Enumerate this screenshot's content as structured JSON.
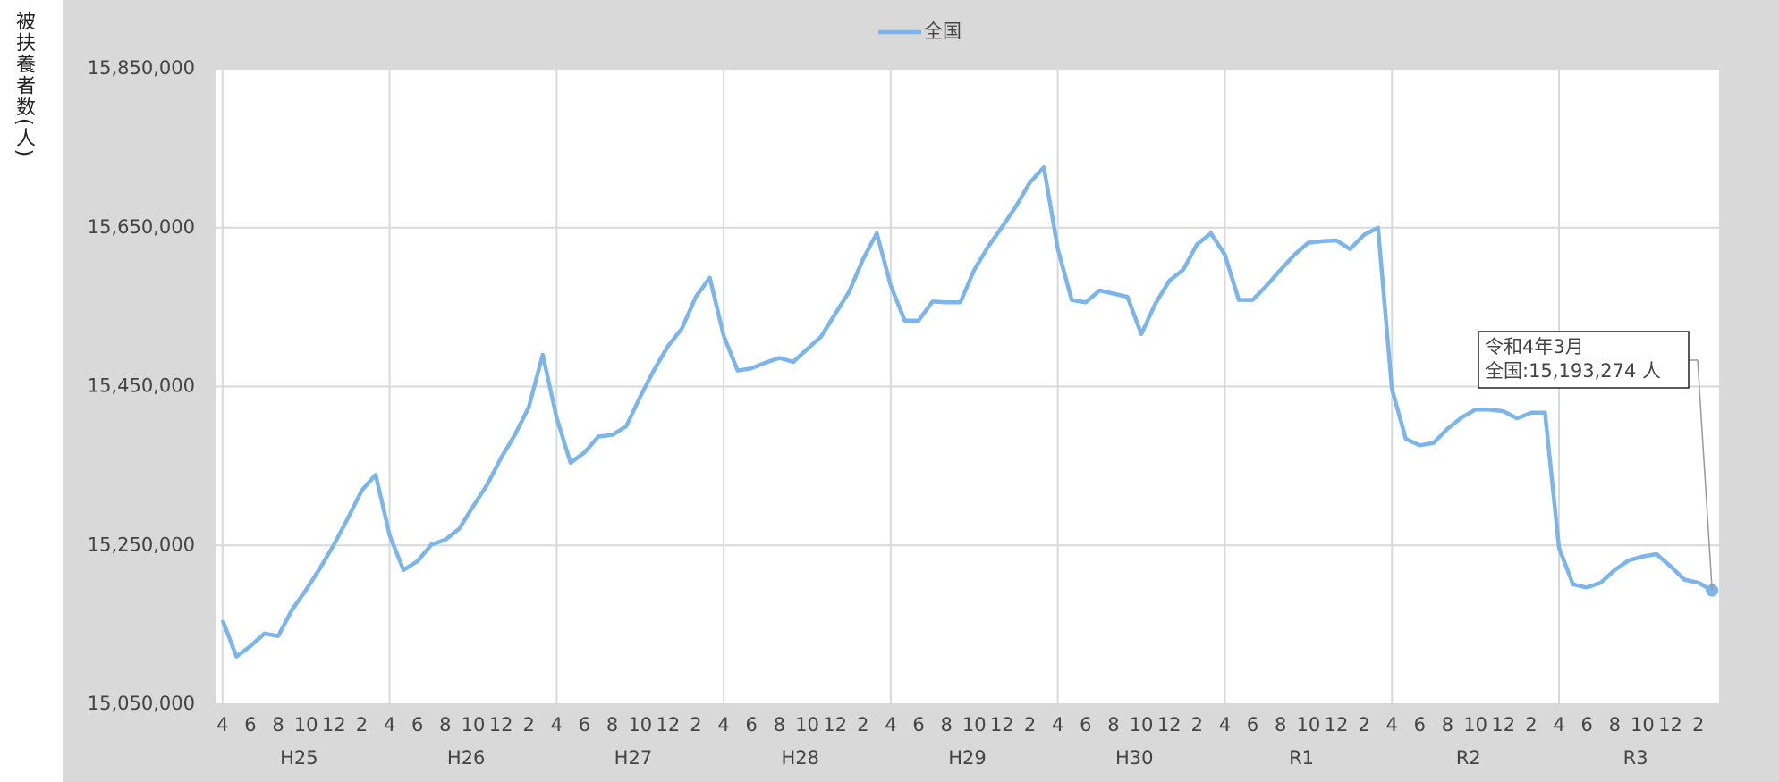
{
  "chart_data": {
    "type": "line",
    "y_label": "被扶養者数(人)",
    "categories": [
      "4",
      null,
      "6",
      null,
      "8",
      null,
      "10",
      null,
      "12",
      null,
      "2",
      null,
      "4",
      null,
      "6",
      null,
      "8",
      null,
      "10",
      null,
      "12",
      null,
      "2",
      null,
      "4",
      null,
      "6",
      null,
      "8",
      null,
      "10",
      null,
      "12",
      null,
      "2",
      null,
      "4",
      null,
      "6",
      null,
      "8",
      null,
      "10",
      null,
      "12",
      null,
      "2",
      null,
      "4",
      null,
      "6",
      null,
      "8",
      null,
      "10",
      null,
      "12",
      null,
      "2",
      null,
      "4",
      null,
      "6",
      null,
      "8",
      null,
      "10",
      null,
      "12",
      null,
      "2",
      null,
      "4",
      null,
      "6",
      null,
      "8",
      null,
      "10",
      null,
      "12",
      null,
      "2",
      null,
      "4",
      null,
      "6",
      null,
      "8",
      null,
      "10",
      null,
      "12",
      null,
      "2",
      null,
      "4",
      null,
      "6",
      null,
      "8",
      null,
      "10",
      null,
      "12",
      null,
      "2",
      null
    ],
    "groups": [
      "H25",
      "H26",
      "H27",
      "H28",
      "H29",
      "H30",
      "R1",
      "R2",
      "R3"
    ],
    "series": [
      {
        "name": "全国",
        "color": "#7cb5ec",
        "values": [
          15156000,
          15110000,
          15123000,
          15139000,
          15136000,
          15169000,
          15194000,
          15221000,
          15251000,
          15284000,
          15319000,
          15339000,
          15263000,
          15219000,
          15230000,
          15251000,
          15257000,
          15271000,
          15299000,
          15326000,
          15360000,
          15389000,
          15424000,
          15490000,
          15411000,
          15354000,
          15367000,
          15387000,
          15389000,
          15400000,
          15437000,
          15471000,
          15501000,
          15523000,
          15563000,
          15587000,
          15514000,
          15470000,
          15473000,
          15480000,
          15486000,
          15481000,
          15497000,
          15513000,
          15541000,
          15569000,
          15610000,
          15643000,
          15577000,
          15533000,
          15533000,
          15557000,
          15556000,
          15556000,
          15597000,
          15626000,
          15651000,
          15677000,
          15707000,
          15726000,
          15623000,
          15559000,
          15556000,
          15571000,
          15567000,
          15563000,
          15516000,
          15554000,
          15583000,
          15597000,
          15629000,
          15643000,
          15616000,
          15559000,
          15559000,
          15577000,
          15597000,
          15616000,
          15631000,
          15633000,
          15634000,
          15623000,
          15641000,
          15650000,
          15447000,
          15384000,
          15376000,
          15379000,
          15397000,
          15411000,
          15421000,
          15421000,
          15419000,
          15410000,
          15417000,
          15417000,
          15247000,
          15201000,
          15197000,
          15203000,
          15219000,
          15231000,
          15236000,
          15239000,
          15224000,
          15207000,
          15203000,
          15193274
        ]
      }
    ],
    "ylim": [
      15050000,
      15850000
    ],
    "yticks": [
      {
        "value": 15050000,
        "label": "15,050,000"
      },
      {
        "value": 15250000,
        "label": "15,250,000"
      },
      {
        "value": 15450000,
        "label": "15,450,000"
      },
      {
        "value": 15650000,
        "label": "15,650,000"
      },
      {
        "value": 15850000,
        "label": "15,850,000"
      }
    ],
    "grid": true,
    "legend": "top",
    "annotation": {
      "title": "令和4年3月",
      "label": "全国:15,193,274 人"
    }
  }
}
